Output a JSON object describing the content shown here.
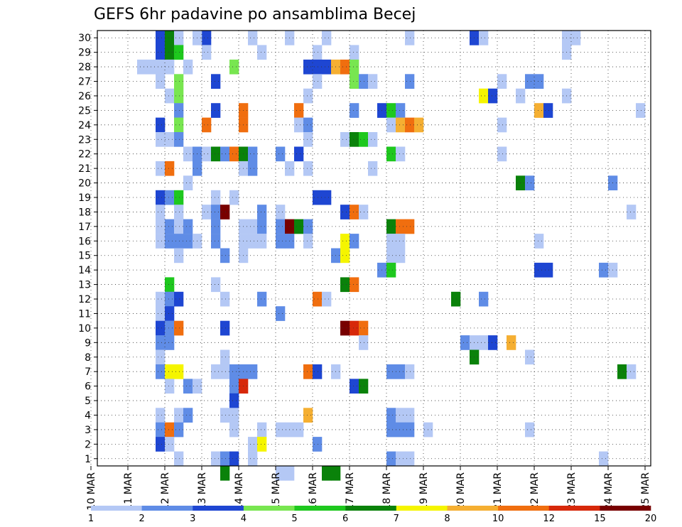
{
  "chart_data": {
    "type": "heatmap",
    "title": "GEFS 6hr padavine po ansamblima Becej",
    "xlabel": "",
    "ylabel": "",
    "grid": true,
    "x_ticks": [
      "10 MAR",
      "11 MAR",
      "12 MAR",
      "13 MAR",
      "14 MAR",
      "15 MAR",
      "16 MAR",
      "17 MAR",
      "18 MAR",
      "19 MAR",
      "20 MAR",
      "21 MAR",
      "22 MAR",
      "23 MAR",
      "24 MAR",
      "25 MAR"
    ],
    "y_ticks": [
      "1",
      "2",
      "3",
      "4",
      "5",
      "6",
      "7",
      "8",
      "9",
      "10",
      "11",
      "12",
      "13",
      "14",
      "15",
      "16",
      "17",
      "18",
      "19",
      "20",
      "21",
      "22",
      "23",
      "24",
      "25",
      "26",
      "27",
      "28",
      "29",
      "30"
    ],
    "xlim": [
      0,
      60
    ],
    "ylim": [
      0,
      30
    ],
    "x_unit": "6-hour step after 10 MAR 00Z",
    "y_unit": "ensemble member",
    "colorbar": {
      "labels": [
        "1",
        "2",
        "3",
        "4",
        "5",
        "6",
        "7",
        "8",
        "10",
        "12",
        "15",
        "20"
      ],
      "colors": [
        "#b4c8f5",
        "#5f8ce6",
        "#1e46d2",
        "#78e650",
        "#1ec81e",
        "#0a820a",
        "#f5f500",
        "#f5af32",
        "#f06e0f",
        "#d7280a",
        "#780000"
      ]
    },
    "cells": [
      [
        7,
        29,
        3
      ],
      [
        8,
        29,
        6
      ],
      [
        9,
        29,
        1
      ],
      [
        12,
        29,
        3
      ],
      [
        11,
        29,
        1
      ],
      [
        17,
        29,
        1
      ],
      [
        21,
        29,
        1
      ],
      [
        25,
        29,
        1
      ],
      [
        34,
        29,
        1
      ],
      [
        41,
        29,
        3
      ],
      [
        42,
        29,
        1
      ],
      [
        51,
        29,
        1
      ],
      [
        52,
        29,
        1
      ],
      [
        7,
        28,
        3
      ],
      [
        8,
        28,
        6
      ],
      [
        9,
        28,
        5
      ],
      [
        12,
        28,
        1
      ],
      [
        18,
        28,
        1
      ],
      [
        24,
        28,
        1
      ],
      [
        28,
        28,
        1
      ],
      [
        51,
        28,
        1
      ],
      [
        5,
        27,
        1
      ],
      [
        6,
        27,
        1
      ],
      [
        7,
        27,
        1
      ],
      [
        8,
        27,
        1
      ],
      [
        10,
        27,
        1
      ],
      [
        15,
        27,
        4
      ],
      [
        23,
        27,
        3
      ],
      [
        24,
        27,
        3
      ],
      [
        25,
        27,
        3
      ],
      [
        26,
        27,
        8
      ],
      [
        27,
        27,
        9
      ],
      [
        28,
        27,
        4
      ],
      [
        7,
        26,
        1
      ],
      [
        9,
        26,
        4
      ],
      [
        13,
        26,
        3
      ],
      [
        24,
        26,
        1
      ],
      [
        28,
        26,
        4
      ],
      [
        29,
        26,
        2
      ],
      [
        30,
        26,
        1
      ],
      [
        34,
        26,
        2
      ],
      [
        44,
        26,
        1
      ],
      [
        47,
        26,
        2
      ],
      [
        48,
        26,
        2
      ],
      [
        8,
        25,
        1
      ],
      [
        9,
        25,
        4
      ],
      [
        23,
        25,
        1
      ],
      [
        42,
        25,
        7
      ],
      [
        43,
        25,
        3
      ],
      [
        46,
        25,
        1
      ],
      [
        51,
        25,
        1
      ],
      [
        9,
        24,
        2
      ],
      [
        13,
        24,
        3
      ],
      [
        16,
        24,
        9
      ],
      [
        22,
        24,
        9
      ],
      [
        28,
        24,
        2
      ],
      [
        31,
        24,
        3
      ],
      [
        32,
        24,
        5
      ],
      [
        33,
        24,
        2
      ],
      [
        48,
        24,
        8
      ],
      [
        49,
        24,
        3
      ],
      [
        59,
        24,
        1
      ],
      [
        7,
        23,
        3
      ],
      [
        9,
        23,
        4
      ],
      [
        12,
        23,
        9
      ],
      [
        16,
        23,
        9
      ],
      [
        22,
        23,
        1
      ],
      [
        23,
        23,
        2
      ],
      [
        32,
        23,
        1
      ],
      [
        33,
        23,
        8
      ],
      [
        34,
        23,
        9
      ],
      [
        35,
        23,
        8
      ],
      [
        44,
        23,
        1
      ],
      [
        7,
        22,
        1
      ],
      [
        8,
        22,
        1
      ],
      [
        9,
        22,
        2
      ],
      [
        23,
        22,
        1
      ],
      [
        27,
        22,
        1
      ],
      [
        28,
        22,
        6
      ],
      [
        29,
        22,
        5
      ],
      [
        30,
        22,
        1
      ],
      [
        10,
        21,
        1
      ],
      [
        11,
        21,
        2
      ],
      [
        12,
        21,
        1
      ],
      [
        13,
        21,
        6
      ],
      [
        14,
        21,
        2
      ],
      [
        15,
        21,
        9
      ],
      [
        16,
        21,
        6
      ],
      [
        17,
        21,
        2
      ],
      [
        20,
        21,
        2
      ],
      [
        22,
        21,
        3
      ],
      [
        32,
        21,
        5
      ],
      [
        33,
        21,
        1
      ],
      [
        44,
        21,
        1
      ],
      [
        7,
        20,
        1
      ],
      [
        8,
        20,
        9
      ],
      [
        11,
        20,
        2
      ],
      [
        16,
        20,
        1
      ],
      [
        17,
        20,
        2
      ],
      [
        21,
        20,
        1
      ],
      [
        23,
        20,
        1
      ],
      [
        30,
        20,
        1
      ],
      [
        10,
        19,
        1
      ],
      [
        46,
        19,
        6
      ],
      [
        47,
        19,
        2
      ],
      [
        56,
        19,
        2
      ],
      [
        7,
        18,
        3
      ],
      [
        8,
        18,
        2
      ],
      [
        9,
        18,
        5
      ],
      [
        13,
        18,
        1
      ],
      [
        15,
        18,
        1
      ],
      [
        24,
        18,
        3
      ],
      [
        25,
        18,
        3
      ],
      [
        7,
        17,
        1
      ],
      [
        9,
        17,
        1
      ],
      [
        12,
        17,
        1
      ],
      [
        13,
        17,
        2
      ],
      [
        14,
        17,
        11
      ],
      [
        18,
        17,
        2
      ],
      [
        20,
        17,
        1
      ],
      [
        27,
        17,
        3
      ],
      [
        28,
        17,
        9
      ],
      [
        29,
        17,
        1
      ],
      [
        58,
        17,
        1
      ],
      [
        7,
        16,
        1
      ],
      [
        8,
        16,
        2
      ],
      [
        9,
        16,
        1
      ],
      [
        10,
        16,
        2
      ],
      [
        13,
        16,
        2
      ],
      [
        16,
        16,
        1
      ],
      [
        17,
        16,
        1
      ],
      [
        18,
        16,
        2
      ],
      [
        20,
        16,
        2
      ],
      [
        21,
        16,
        11
      ],
      [
        22,
        16,
        6
      ],
      [
        23,
        16,
        2
      ],
      [
        32,
        16,
        6
      ],
      [
        33,
        16,
        9
      ],
      [
        34,
        16,
        9
      ],
      [
        7,
        15,
        1
      ],
      [
        8,
        15,
        2
      ],
      [
        9,
        15,
        2
      ],
      [
        10,
        15,
        2
      ],
      [
        11,
        15,
        1
      ],
      [
        13,
        15,
        2
      ],
      [
        16,
        15,
        1
      ],
      [
        17,
        15,
        1
      ],
      [
        18,
        15,
        1
      ],
      [
        20,
        15,
        2
      ],
      [
        21,
        15,
        2
      ],
      [
        23,
        15,
        1
      ],
      [
        27,
        15,
        7
      ],
      [
        28,
        15,
        2
      ],
      [
        32,
        15,
        1
      ],
      [
        33,
        15,
        1
      ],
      [
        48,
        15,
        1
      ],
      [
        9,
        14,
        1
      ],
      [
        14,
        14,
        2
      ],
      [
        16,
        14,
        1
      ],
      [
        26,
        14,
        2
      ],
      [
        27,
        14,
        7
      ],
      [
        32,
        14,
        1
      ],
      [
        33,
        14,
        1
      ],
      [
        31,
        13,
        2
      ],
      [
        32,
        13,
        5
      ],
      [
        48,
        13,
        3
      ],
      [
        49,
        13,
        3
      ],
      [
        55,
        13,
        2
      ],
      [
        56,
        13,
        1
      ],
      [
        8,
        12,
        5
      ],
      [
        13,
        12,
        1
      ],
      [
        27,
        12,
        6
      ],
      [
        28,
        12,
        9
      ],
      [
        7,
        11,
        1
      ],
      [
        8,
        11,
        2
      ],
      [
        9,
        11,
        3
      ],
      [
        14,
        11,
        1
      ],
      [
        18,
        11,
        2
      ],
      [
        24,
        11,
        9
      ],
      [
        25,
        11,
        1
      ],
      [
        39,
        11,
        6
      ],
      [
        42,
        11,
        2
      ],
      [
        7,
        10,
        1
      ],
      [
        8,
        10,
        3
      ],
      [
        20,
        10,
        2
      ],
      [
        7,
        9,
        3
      ],
      [
        8,
        9,
        2
      ],
      [
        9,
        9,
        9
      ],
      [
        14,
        9,
        3
      ],
      [
        27,
        9,
        11
      ],
      [
        28,
        9,
        10
      ],
      [
        29,
        9,
        9
      ],
      [
        7,
        8,
        2
      ],
      [
        8,
        8,
        2
      ],
      [
        29,
        8,
        1
      ],
      [
        40,
        8,
        2
      ],
      [
        41,
        8,
        1
      ],
      [
        42,
        8,
        1
      ],
      [
        43,
        8,
        3
      ],
      [
        45,
        8,
        8
      ],
      [
        7,
        7,
        1
      ],
      [
        14,
        7,
        1
      ],
      [
        41,
        7,
        6
      ],
      [
        47,
        7,
        1
      ],
      [
        7,
        6,
        2
      ],
      [
        8,
        6,
        7
      ],
      [
        9,
        6,
        7
      ],
      [
        13,
        6,
        1
      ],
      [
        14,
        6,
        1
      ],
      [
        15,
        6,
        2
      ],
      [
        16,
        6,
        2
      ],
      [
        17,
        6,
        2
      ],
      [
        23,
        6,
        9
      ],
      [
        24,
        6,
        3
      ],
      [
        26,
        6,
        1
      ],
      [
        32,
        6,
        2
      ],
      [
        33,
        6,
        2
      ],
      [
        34,
        6,
        1
      ],
      [
        57,
        6,
        6
      ],
      [
        58,
        6,
        1
      ],
      [
        8,
        5,
        1
      ],
      [
        10,
        5,
        2
      ],
      [
        11,
        5,
        1
      ],
      [
        15,
        5,
        2
      ],
      [
        16,
        5,
        10
      ],
      [
        28,
        5,
        3
      ],
      [
        29,
        5,
        6
      ],
      [
        15,
        4,
        3
      ],
      [
        7,
        3,
        1
      ],
      [
        9,
        3,
        1
      ],
      [
        10,
        3,
        2
      ],
      [
        14,
        3,
        1
      ],
      [
        15,
        3,
        1
      ],
      [
        23,
        3,
        8
      ],
      [
        32,
        3,
        2
      ],
      [
        33,
        3,
        1
      ],
      [
        34,
        3,
        1
      ],
      [
        7,
        2,
        2
      ],
      [
        8,
        2,
        9
      ],
      [
        9,
        2,
        2
      ],
      [
        15,
        2,
        1
      ],
      [
        18,
        2,
        1
      ],
      [
        20,
        2,
        1
      ],
      [
        21,
        2,
        1
      ],
      [
        22,
        2,
        1
      ],
      [
        32,
        2,
        2
      ],
      [
        33,
        2,
        2
      ],
      [
        34,
        2,
        2
      ],
      [
        36,
        2,
        1
      ],
      [
        47,
        2,
        1
      ],
      [
        7,
        1,
        3
      ],
      [
        8,
        1,
        1
      ],
      [
        17,
        1,
        1
      ],
      [
        18,
        1,
        7
      ],
      [
        24,
        1,
        2
      ],
      [
        9,
        0,
        1
      ],
      [
        13,
        0,
        1
      ],
      [
        14,
        0,
        2
      ],
      [
        15,
        0,
        3
      ],
      [
        17,
        0,
        1
      ],
      [
        32,
        0,
        2
      ],
      [
        33,
        0,
        1
      ],
      [
        34,
        0,
        1
      ],
      [
        55,
        0,
        1
      ],
      [
        14,
        -1,
        6
      ],
      [
        20,
        -1,
        1
      ],
      [
        21,
        -1,
        1
      ],
      [
        25,
        -1,
        6
      ],
      [
        26,
        -1,
        6
      ]
    ]
  }
}
